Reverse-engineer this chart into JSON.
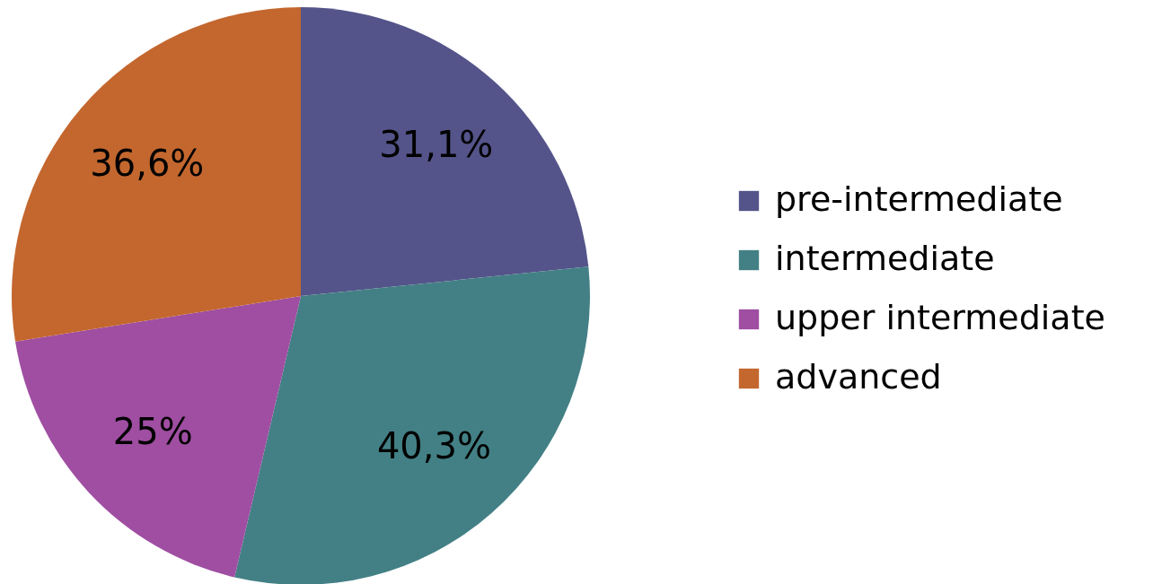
{
  "chart_data": {
    "type": "pie",
    "categories": [
      "pre-intermediate",
      "intermediate",
      "upper intermediate",
      "advanced"
    ],
    "values": [
      31.1,
      40.3,
      25,
      36.6
    ],
    "value_labels": [
      "31,1%",
      "40,3%",
      "25%",
      "36,6%"
    ],
    "colors": [
      "#54548a",
      "#438085",
      "#9f4ea2",
      "#c3672f"
    ],
    "legend": "right"
  }
}
